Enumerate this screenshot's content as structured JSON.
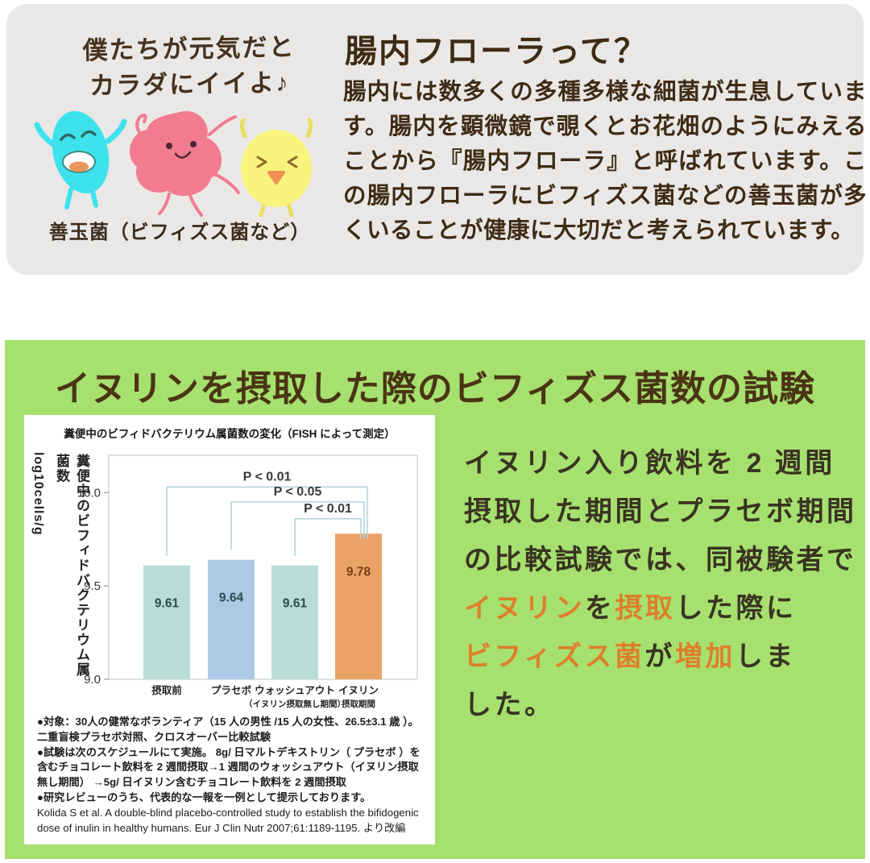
{
  "colors": {
    "intro_card_bg": "#eae8e6",
    "brown_text": "#3f2b15",
    "green_bg": "#a6e06f",
    "orange_accent": "#df7e2a",
    "bacteria_cyan": "#3ee2ec",
    "bacteria_pink": "#f17c90",
    "bacteria_yellow": "#f8f37c"
  },
  "top_section": {
    "speech_line1": "僕たちが元気だと",
    "speech_line2": "カラダにイイよ♪",
    "characters_label": "善玉菌（ビフィズス菌など）",
    "heading": "腸内フローラって？",
    "body": "腸内には数多くの多種多様な細菌が生息しています。腸内を顕微鏡で覗くとお花畑のようにみえることから『腸内フローラ』と呼ばれています。この腸内フローラにビフィズス菌などの善玉菌が多くいることが健康に大切だと考えられています。"
  },
  "green_section": {
    "title": "イヌリンを摂取した際のビフィズス菌数の試験",
    "paragraph_lines": [
      [
        {
          "t": "イヌリン入り飲料を 2 週間",
          "hl": false
        }
      ],
      [
        {
          "t": "摂取した期間とプラセボ期間",
          "hl": false
        }
      ],
      [
        {
          "t": "の比較試験では、同被験者で",
          "hl": false
        }
      ],
      [
        {
          "t": "イヌリン",
          "hl": true
        },
        {
          "t": "を",
          "hl": false
        },
        {
          "t": "摂取",
          "hl": true
        },
        {
          "t": "した際に",
          "hl": false
        }
      ],
      [
        {
          "t": "ビフィズス菌",
          "hl": true
        },
        {
          "t": "が",
          "hl": false
        },
        {
          "t": "増加",
          "hl": true
        },
        {
          "t": "しま",
          "hl": false
        }
      ],
      [
        {
          "t": "した。",
          "hl": false
        }
      ]
    ],
    "footnotes": [
      "●対象：30人の健常なボランティア（15 人の男性 /15 人の女性、26.5±3.1 歳 ）。二重盲検プラセボ対照、クロスオーバー比較試験",
      "●試験は次のスケジュールにて実施。 8g/ 日マルトデキストリン（ プラセボ ）を含むチョコレート飲料を 2 週間摂取→1 週間のウォッシュアウト（イヌリン摂取無し期間） →5g/ 日イヌリン含むチョコレート飲料を 2 週間摂取",
      "●研究レビューのうち、代表的な一報を一例として提示しております。"
    ],
    "citation": "Kolida S et al. A double-blind placebo-controlled study to establish the bifidogenic dose of inulin in healthy humans. Eur J Clin Nutr 2007;61:1189-1195. より改編"
  },
  "chart_data": {
    "type": "bar",
    "title": "糞便中のビフィドバクテリウム属菌数の変化（FISH によって測定）",
    "ylabel": "糞便中のビフィドバクテリウム属菌数",
    "ylabel_unit": "log10cells/g",
    "categories": [
      "摂取前",
      "プラセボ",
      "ウォッシュアウト\n（イヌリン摂取無し期間）",
      "イヌリン\n摂取期間"
    ],
    "values": [
      9.61,
      9.64,
      9.61,
      9.78
    ],
    "bar_colors": [
      "#b9dcd8",
      "#adc9e6",
      "#b9dcd8",
      "#eba266"
    ],
    "value_label_colors": [
      "#31484c",
      "#31484c",
      "#31484c",
      "#7c3e16"
    ],
    "yticks": [
      9.0,
      9.5,
      10.0
    ],
    "ylim": [
      9.0,
      10.2
    ],
    "grid": false,
    "legend": false,
    "brackets": [
      {
        "label": "P < 0.01",
        "from": 0,
        "to": 3,
        "level": 10.03
      },
      {
        "label": "P < 0.05",
        "from": 1,
        "to": 3,
        "level": 9.95
      },
      {
        "label": "P < 0.01",
        "from": 2,
        "to": 3,
        "level": 9.86
      }
    ]
  }
}
